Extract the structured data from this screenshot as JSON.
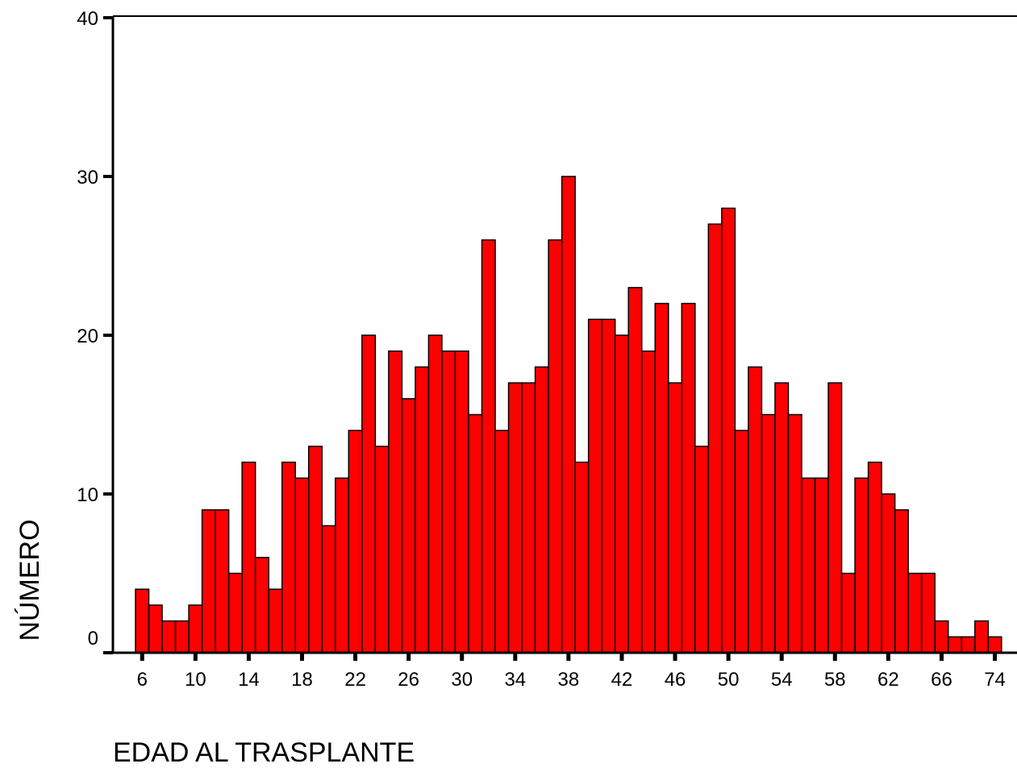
{
  "chart_data": {
    "type": "bar",
    "x_label": "EDAD AL TRASPLANTE",
    "y_label": "NÚMERO",
    "categories": [
      "6",
      null,
      null,
      null,
      "10",
      null,
      null,
      null,
      "14",
      null,
      null,
      null,
      "18",
      null,
      null,
      null,
      "22",
      null,
      null,
      null,
      "26",
      null,
      null,
      null,
      "30",
      null,
      null,
      null,
      "34",
      null,
      null,
      null,
      "38",
      null,
      null,
      null,
      "42",
      null,
      null,
      null,
      "46",
      null,
      null,
      null,
      "50",
      null,
      null,
      null,
      "54",
      null,
      null,
      null,
      "58",
      null,
      null,
      null,
      "62",
      null,
      null,
      null,
      "66",
      null,
      null,
      null,
      "74"
    ],
    "values": [
      4,
      3,
      2,
      2,
      3,
      9,
      9,
      5,
      12,
      6,
      4,
      12,
      11,
      13,
      8,
      11,
      14,
      20,
      13,
      19,
      16,
      18,
      20,
      19,
      19,
      15,
      26,
      14,
      17,
      17,
      18,
      26,
      30,
      12,
      21,
      21,
      20,
      23,
      19,
      22,
      17,
      22,
      13,
      27,
      28,
      14,
      18,
      15,
      17,
      15,
      11,
      11,
      17,
      5,
      11,
      12,
      10,
      9,
      5,
      5,
      2,
      1,
      1,
      2,
      1
    ],
    "color": "#ff0000",
    "ylim": [
      0,
      40
    ],
    "yticks": [
      0,
      10,
      20,
      30,
      40
    ],
    "grid": false
  }
}
